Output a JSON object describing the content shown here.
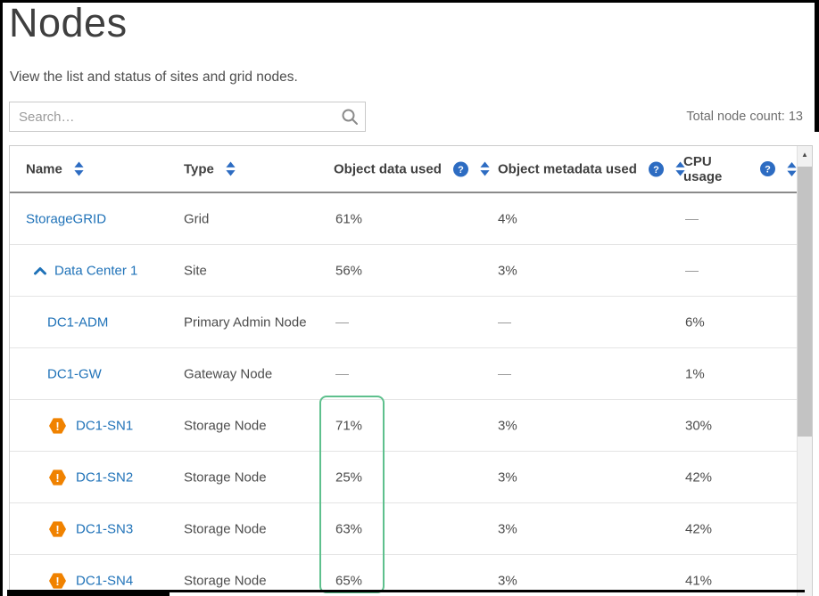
{
  "page": {
    "title": "Nodes",
    "subtitle": "View the list and status of sites and grid nodes.",
    "search_placeholder": "Search…",
    "total_node_count": "Total node count: 13"
  },
  "table": {
    "columns": [
      {
        "label": "Name",
        "sortable": true,
        "help": false
      },
      {
        "label": "Type",
        "sortable": true,
        "help": false
      },
      {
        "label": "Object data used",
        "sortable": true,
        "help": true
      },
      {
        "label": "Object metadata used",
        "sortable": true,
        "help": true
      },
      {
        "label": "CPU usage",
        "sortable": true,
        "help": true
      }
    ],
    "rows": [
      {
        "name": "StorageGRID",
        "indent": 0,
        "caret": false,
        "warning": false,
        "type": "Grid",
        "object_data_used": "61%",
        "object_metadata_used": "4%",
        "cpu_usage": "—"
      },
      {
        "name": "Data Center 1",
        "indent": 1,
        "caret": true,
        "warning": false,
        "type": "Site",
        "object_data_used": "56%",
        "object_metadata_used": "3%",
        "cpu_usage": "—"
      },
      {
        "name": "DC1-ADM",
        "indent": 2,
        "caret": false,
        "warning": false,
        "type": "Primary Admin Node",
        "object_data_used": "—",
        "object_metadata_used": "—",
        "cpu_usage": "6%"
      },
      {
        "name": "DC1-GW",
        "indent": 2,
        "caret": false,
        "warning": false,
        "type": "Gateway Node",
        "object_data_used": "—",
        "object_metadata_used": "—",
        "cpu_usage": "1%"
      },
      {
        "name": "DC1-SN1",
        "indent": 2,
        "caret": false,
        "warning": true,
        "type": "Storage Node",
        "object_data_used": "71%",
        "object_metadata_used": "3%",
        "cpu_usage": "30%"
      },
      {
        "name": "DC1-SN2",
        "indent": 2,
        "caret": false,
        "warning": true,
        "type": "Storage Node",
        "object_data_used": "25%",
        "object_metadata_used": "3%",
        "cpu_usage": "42%"
      },
      {
        "name": "DC1-SN3",
        "indent": 2,
        "caret": false,
        "warning": true,
        "type": "Storage Node",
        "object_data_used": "63%",
        "object_metadata_used": "3%",
        "cpu_usage": "42%"
      },
      {
        "name": "DC1-SN4",
        "indent": 2,
        "caret": false,
        "warning": true,
        "type": "Storage Node",
        "object_data_used": "65%",
        "object_metadata_used": "3%",
        "cpu_usage": "41%"
      }
    ]
  },
  "annotation": {
    "highlighted_column": "Object data used",
    "highlighted_values": [
      "71%",
      "25%",
      "63%",
      "65%"
    ]
  },
  "colors": {
    "link_blue": "#1f72b8",
    "icon_blue": "#2d6cc2",
    "warning_orange": "#f08200",
    "highlight_green": "#5ec08d"
  }
}
